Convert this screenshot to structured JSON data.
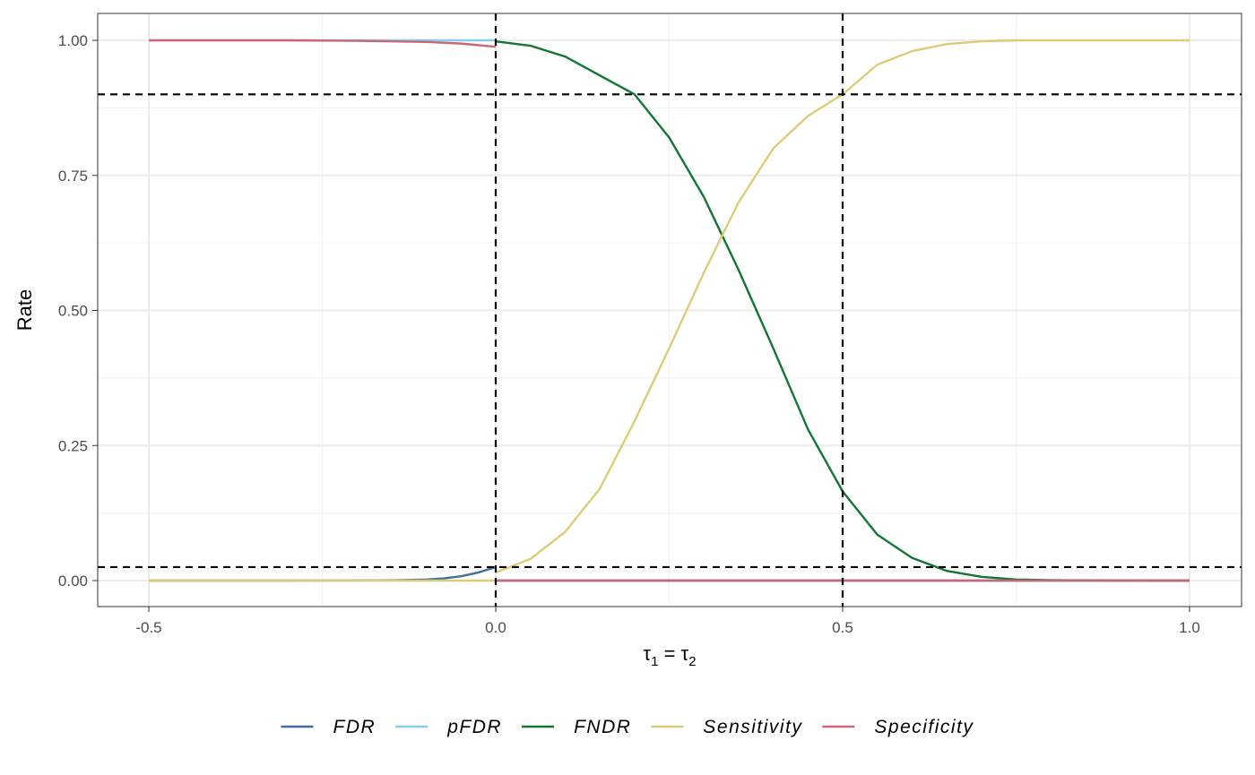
{
  "chart_data": {
    "type": "line",
    "title": "",
    "xlabel_parts": [
      "τ",
      "1",
      " = τ",
      "2"
    ],
    "ylabel": "Rate",
    "xlim": [
      -0.5,
      1.0
    ],
    "ylim": [
      0,
      1
    ],
    "x_ticks": [
      {
        "value": -0.5,
        "label": "-0.5"
      },
      {
        "value": 0.0,
        "label": "0.0"
      },
      {
        "value": 0.5,
        "label": "0.5"
      },
      {
        "value": 1.0,
        "label": "1.0"
      }
    ],
    "y_ticks": [
      {
        "value": 0.0,
        "label": "0.00"
      },
      {
        "value": 0.25,
        "label": "0.25"
      },
      {
        "value": 0.5,
        "label": "0.50"
      },
      {
        "value": 0.75,
        "label": "0.75"
      },
      {
        "value": 1.0,
        "label": "1.00"
      }
    ],
    "grid": true,
    "legend_position": "bottom",
    "reference_lines": {
      "vertical": [
        0.0,
        0.5
      ],
      "horizontal": [
        0.9,
        0.025
      ]
    },
    "series": [
      {
        "name": "FDR",
        "color": "#3b6fa0",
        "x": [
          -0.5,
          -0.4,
          -0.3,
          -0.2,
          -0.15,
          -0.1,
          -0.075,
          -0.05,
          -0.025,
          0.0,
          0.0,
          0.25,
          0.5,
          0.75,
          1.0
        ],
        "y": [
          0,
          0,
          0,
          0.0002,
          0.0006,
          0.002,
          0.004,
          0.008,
          0.015,
          0.025,
          0,
          0,
          0,
          0,
          0
        ]
      },
      {
        "name": "pFDR",
        "color": "#88ccee",
        "x": [
          -0.5,
          -0.25,
          -0.1,
          0.0,
          0.0,
          0.25,
          0.5,
          0.75,
          1.0
        ],
        "y": [
          1.0,
          1.0,
          1.0,
          1.0,
          0,
          0,
          0,
          0,
          0
        ]
      },
      {
        "name": "FNDR",
        "color": "#117733",
        "x": [
          0.0,
          0.05,
          0.1,
          0.15,
          0.2,
          0.25,
          0.3,
          0.35,
          0.4,
          0.45,
          0.5,
          0.55,
          0.6,
          0.65,
          0.7,
          0.75,
          0.8,
          0.85,
          0.9,
          0.95,
          1.0
        ],
        "y": [
          0.998,
          0.99,
          0.97,
          0.935,
          0.9,
          0.82,
          0.71,
          0.575,
          0.43,
          0.28,
          0.165,
          0.085,
          0.042,
          0.018,
          0.007,
          0.002,
          0.0008,
          0.0003,
          0.0001,
          0.0,
          0.0
        ]
      },
      {
        "name": "Sensitivity",
        "color": "#ddcc77",
        "x": [
          -0.5,
          -0.25,
          0.0,
          0.0,
          0.05,
          0.1,
          0.15,
          0.2,
          0.25,
          0.3,
          0.35,
          0.4,
          0.45,
          0.5,
          0.55,
          0.6,
          0.65,
          0.7,
          0.75,
          0.8,
          0.85,
          0.9,
          0.95,
          1.0
        ],
        "y": [
          0,
          0,
          0,
          0.015,
          0.04,
          0.09,
          0.17,
          0.295,
          0.43,
          0.57,
          0.7,
          0.8,
          0.86,
          0.9,
          0.955,
          0.98,
          0.993,
          0.998,
          1.0,
          1.0,
          1.0,
          1.0,
          1.0,
          1.0
        ]
      },
      {
        "name": "Specificity",
        "color": "#cc6677",
        "x": [
          -0.5,
          -0.3,
          -0.2,
          -0.1,
          -0.05,
          0.0,
          0.0,
          0.25,
          0.5,
          0.75,
          1.0
        ],
        "y": [
          1.0,
          1.0,
          0.999,
          0.997,
          0.994,
          0.988,
          0,
          0,
          0,
          0,
          0
        ]
      }
    ]
  }
}
